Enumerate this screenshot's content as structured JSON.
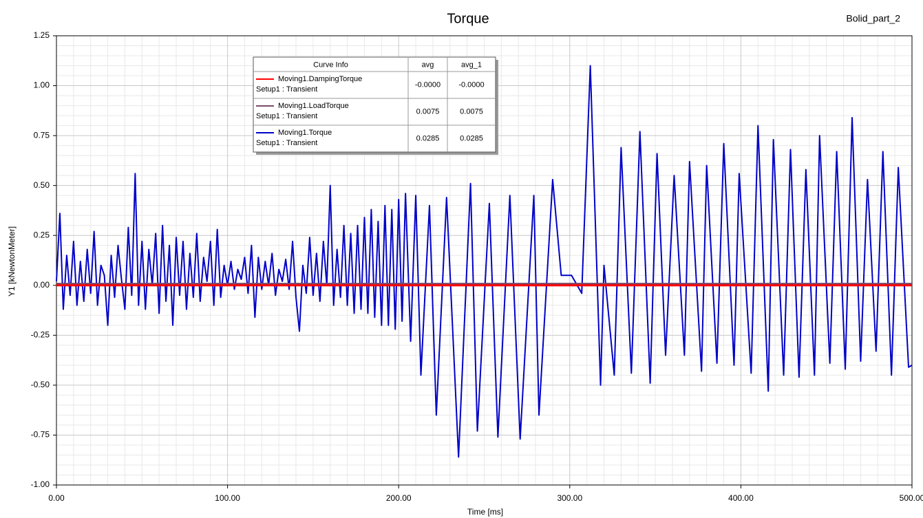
{
  "chart_data": {
    "type": "line",
    "title": "Torque",
    "project": "Bolid_part_2",
    "xlabel": "Time [ms]",
    "ylabel": "Y1 [kNewtonMeter]",
    "xlim": [
      0,
      500
    ],
    "ylim": [
      -1.0,
      1.25
    ],
    "xticks": [
      {
        "value": 0,
        "label": "0.00"
      },
      {
        "value": 100,
        "label": "100.00"
      },
      {
        "value": 200,
        "label": "200.00"
      },
      {
        "value": 300,
        "label": "300.00"
      },
      {
        "value": 400,
        "label": "400.00"
      },
      {
        "value": 500,
        "label": "500.00"
      }
    ],
    "yticks": [
      {
        "value": -1,
        "label": "-1.00"
      },
      -0.75,
      {
        "value": -0.5,
        "label": "-0.50"
      },
      -0.25,
      {
        "value": 0,
        "label": "0.00"
      },
      0.25,
      {
        "value": 0.5,
        "label": "0.50"
      },
      0.75,
      {
        "value": 1,
        "label": "1.00"
      },
      1.25
    ],
    "grid": true,
    "legend_columns": [
      "Curve Info",
      "avg",
      "avg_1"
    ],
    "series": [
      {
        "name": "Moving1.DampingTorque",
        "setup": "Setup1 : Transient",
        "avg": "-0.0000",
        "avg_1": "-0.0000",
        "color": "#ff0000",
        "x": [
          0,
          500
        ],
        "values": [
          0,
          0
        ]
      },
      {
        "name": "Moving1.LoadTorque",
        "setup": "Setup1 : Transient",
        "avg": "0.0075",
        "avg_1": "0.0075",
        "color": "#7a4a6a",
        "x": [
          0,
          500
        ],
        "values": [
          0.0075,
          0.0075
        ]
      },
      {
        "name": "Moving1.Torque",
        "setup": "Setup1 : Transient",
        "avg": "0.0285",
        "avg_1": "0.0285",
        "color": "#0000c8",
        "x": [
          0,
          2,
          4,
          6,
          8,
          10,
          12,
          14,
          16,
          18,
          20,
          22,
          24,
          26,
          28,
          30,
          32,
          34,
          36,
          38,
          40,
          42,
          44,
          46,
          48,
          50,
          52,
          54,
          56,
          58,
          60,
          62,
          64,
          66,
          68,
          70,
          72,
          74,
          76,
          78,
          80,
          82,
          84,
          86,
          88,
          90,
          92,
          94,
          96,
          98,
          100,
          102,
          104,
          106,
          108,
          110,
          112,
          114,
          116,
          118,
          120,
          122,
          124,
          126,
          128,
          130,
          132,
          134,
          136,
          138,
          140,
          142,
          144,
          146,
          148,
          150,
          152,
          154,
          156,
          158,
          160,
          162,
          164,
          166,
          168,
          170,
          172,
          174,
          176,
          178,
          180,
          182,
          184,
          186,
          188,
          190,
          192,
          194,
          196,
          198,
          200,
          202,
          204,
          207,
          210,
          213,
          218,
          222,
          228,
          235,
          242,
          246,
          253,
          258,
          265,
          271,
          279,
          282,
          290,
          295,
          301,
          307,
          312,
          318,
          320,
          326,
          330,
          336,
          341,
          347,
          351,
          356,
          361,
          367,
          370,
          377,
          380,
          386,
          390,
          396,
          399,
          406,
          410,
          416,
          419,
          425,
          429,
          434,
          438,
          443,
          446,
          452,
          456,
          461,
          465,
          470,
          474,
          479,
          483,
          488,
          492,
          498,
          500
        ],
        "values": [
          0.02,
          0.36,
          -0.12,
          0.15,
          -0.05,
          0.22,
          -0.1,
          0.12,
          -0.08,
          0.18,
          -0.04,
          0.27,
          -0.1,
          0.1,
          0.05,
          -0.2,
          0.15,
          -0.06,
          0.2,
          0.03,
          -0.12,
          0.29,
          -0.05,
          0.56,
          -0.1,
          0.22,
          -0.12,
          0.18,
          0.0,
          0.26,
          -0.14,
          0.3,
          -0.08,
          0.2,
          -0.2,
          0.24,
          -0.05,
          0.22,
          -0.12,
          0.16,
          -0.06,
          0.26,
          -0.08,
          0.14,
          0.02,
          0.22,
          -0.1,
          0.28,
          -0.06,
          0.1,
          0.0,
          0.12,
          -0.02,
          0.08,
          0.03,
          0.14,
          -0.04,
          0.2,
          -0.16,
          0.14,
          -0.02,
          0.12,
          0.0,
          0.16,
          -0.05,
          0.08,
          0.02,
          0.13,
          -0.02,
          0.22,
          -0.06,
          -0.23,
          0.1,
          -0.04,
          0.24,
          -0.05,
          0.16,
          -0.08,
          0.22,
          0.0,
          0.5,
          -0.1,
          0.18,
          -0.06,
          0.3,
          -0.1,
          0.26,
          -0.14,
          0.3,
          -0.12,
          0.34,
          -0.14,
          0.38,
          -0.16,
          0.32,
          -0.2,
          0.4,
          -0.2,
          0.38,
          -0.22,
          0.43,
          -0.18,
          0.46,
          -0.28,
          0.45,
          -0.45,
          0.4,
          -0.65,
          0.44,
          -0.86,
          0.51,
          -0.73,
          0.41,
          -0.76,
          0.45,
          -0.77,
          0.45,
          -0.65,
          0.53,
          0.05,
          0.05,
          -0.04,
          1.1,
          -0.5,
          0.1,
          -0.45,
          0.69,
          -0.44,
          0.77,
          -0.49,
          0.66,
          -0.35,
          0.55,
          -0.35,
          0.62,
          -0.43,
          0.6,
          -0.39,
          0.71,
          -0.4,
          0.56,
          -0.44,
          0.8,
          -0.53,
          0.73,
          -0.45,
          0.68,
          -0.46,
          0.58,
          -0.45,
          0.75,
          -0.39,
          0.67,
          -0.42,
          0.84,
          -0.38,
          0.53,
          -0.33,
          0.67,
          -0.45,
          0.59,
          -0.41,
          -0.4
        ]
      }
    ]
  }
}
